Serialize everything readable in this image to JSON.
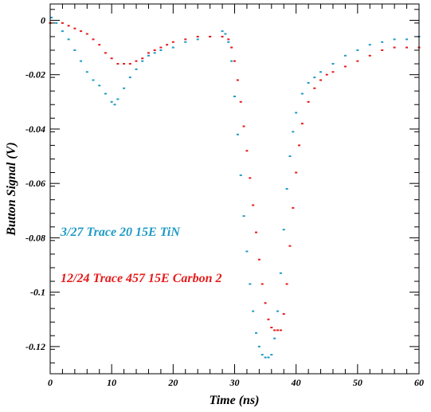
{
  "chart_data": {
    "type": "scatter",
    "xlabel": "Time (ns)",
    "ylabel": "Button Signal (V)",
    "xlim": [
      0,
      60
    ],
    "ylim": [
      -0.13,
      0.006
    ],
    "x_ticks": [
      {
        "v": 0,
        "label": "0"
      },
      {
        "v": 10,
        "label": "10"
      },
      {
        "v": 20,
        "label": "20"
      },
      {
        "v": 30,
        "label": "30"
      },
      {
        "v": 40,
        "label": "40"
      },
      {
        "v": 50,
        "label": "50"
      },
      {
        "v": 60,
        "label": "60"
      }
    ],
    "y_ticks": [
      {
        "v": 0,
        "label": "0"
      },
      {
        "v": -0.02,
        "label": "-0.02"
      },
      {
        "v": -0.04,
        "label": "-0.04"
      },
      {
        "v": -0.06,
        "label": "-0.06"
      },
      {
        "v": -0.08,
        "label": "-0.08"
      },
      {
        "v": -0.1,
        "label": "-0.1"
      },
      {
        "v": -0.12,
        "label": "-0.12"
      }
    ],
    "grid": false,
    "legend_position": "left",
    "series": [
      {
        "name": "3/27 Trace 20 15E TiN",
        "color": "#1e9bc4",
        "points": [
          [
            0.2,
            0.001
          ],
          [
            1,
            -0.001
          ],
          [
            2,
            -0.004
          ],
          [
            3,
            -0.007
          ],
          [
            4,
            -0.011
          ],
          [
            5,
            -0.015
          ],
          [
            6,
            -0.019
          ],
          [
            7,
            -0.022
          ],
          [
            8,
            -0.024
          ],
          [
            9,
            -0.027
          ],
          [
            10,
            -0.03
          ],
          [
            10.5,
            -0.031
          ],
          [
            11,
            -0.029
          ],
          [
            12,
            -0.025
          ],
          [
            13,
            -0.021
          ],
          [
            14,
            -0.018
          ],
          [
            15,
            -0.015
          ],
          [
            16,
            -0.013
          ],
          [
            17,
            -0.012
          ],
          [
            18,
            -0.011
          ],
          [
            20,
            -0.01
          ],
          [
            22,
            -0.008
          ],
          [
            24,
            -0.007
          ],
          [
            26,
            -0.006
          ],
          [
            28,
            -0.004
          ],
          [
            28.5,
            -0.005
          ],
          [
            29,
            -0.008
          ],
          [
            29.5,
            -0.015
          ],
          [
            30,
            -0.028
          ],
          [
            30.5,
            -0.042
          ],
          [
            31,
            -0.057
          ],
          [
            31.5,
            -0.072
          ],
          [
            32,
            -0.085
          ],
          [
            32.5,
            -0.097
          ],
          [
            33,
            -0.107
          ],
          [
            33.5,
            -0.115
          ],
          [
            34,
            -0.12
          ],
          [
            34.5,
            -0.123
          ],
          [
            35,
            -0.124
          ],
          [
            35.5,
            -0.124
          ],
          [
            36,
            -0.123
          ],
          [
            36.5,
            -0.117
          ],
          [
            37,
            -0.107
          ],
          [
            37.5,
            -0.093
          ],
          [
            38,
            -0.077
          ],
          [
            38.5,
            -0.062
          ],
          [
            39,
            -0.05
          ],
          [
            39.5,
            -0.041
          ],
          [
            40,
            -0.034
          ],
          [
            41,
            -0.027
          ],
          [
            42,
            -0.023
          ],
          [
            43,
            -0.021
          ],
          [
            44,
            -0.019
          ],
          [
            46,
            -0.016
          ],
          [
            48,
            -0.013
          ],
          [
            50,
            -0.011
          ],
          [
            52,
            -0.009
          ],
          [
            54,
            -0.008
          ],
          [
            56,
            -0.007
          ],
          [
            58,
            -0.007
          ],
          [
            60,
            -0.006
          ]
        ]
      },
      {
        "name": "12/24 Trace 457 15E Carbon 2",
        "color": "#e51b1b",
        "points": [
          [
            0,
            -0.001
          ],
          [
            2,
            -0.001
          ],
          [
            3,
            -0.002
          ],
          [
            4,
            -0.003
          ],
          [
            5,
            -0.004
          ],
          [
            6,
            -0.005
          ],
          [
            7,
            -0.007
          ],
          [
            8,
            -0.009
          ],
          [
            9,
            -0.012
          ],
          [
            10,
            -0.014
          ],
          [
            11,
            -0.016
          ],
          [
            12,
            -0.016
          ],
          [
            13,
            -0.016
          ],
          [
            14,
            -0.015
          ],
          [
            15,
            -0.014
          ],
          [
            16,
            -0.012
          ],
          [
            17,
            -0.011
          ],
          [
            18,
            -0.01
          ],
          [
            19,
            -0.009
          ],
          [
            20,
            -0.008
          ],
          [
            22,
            -0.007
          ],
          [
            24,
            -0.006
          ],
          [
            26,
            -0.006
          ],
          [
            28,
            -0.006
          ],
          [
            29,
            -0.007
          ],
          [
            29.5,
            -0.01
          ],
          [
            30,
            -0.015
          ],
          [
            30.5,
            -0.022
          ],
          [
            31,
            -0.03
          ],
          [
            31.5,
            -0.039
          ],
          [
            32,
            -0.048
          ],
          [
            32.5,
            -0.058
          ],
          [
            33,
            -0.068
          ],
          [
            33.5,
            -0.078
          ],
          [
            34,
            -0.088
          ],
          [
            34.5,
            -0.097
          ],
          [
            35,
            -0.104
          ],
          [
            35.5,
            -0.11
          ],
          [
            36,
            -0.113
          ],
          [
            36.5,
            -0.114
          ],
          [
            37,
            -0.114
          ],
          [
            37.5,
            -0.114
          ],
          [
            38,
            -0.108
          ],
          [
            38.5,
            -0.097
          ],
          [
            39,
            -0.083
          ],
          [
            39.5,
            -0.069
          ],
          [
            40,
            -0.056
          ],
          [
            40.5,
            -0.046
          ],
          [
            41,
            -0.038
          ],
          [
            42,
            -0.03
          ],
          [
            43,
            -0.025
          ],
          [
            44,
            -0.022
          ],
          [
            45,
            -0.02
          ],
          [
            46,
            -0.019
          ],
          [
            48,
            -0.017
          ],
          [
            50,
            -0.015
          ],
          [
            52,
            -0.013
          ],
          [
            54,
            -0.011
          ],
          [
            56,
            -0.01
          ],
          [
            58,
            -0.01
          ],
          [
            60,
            -0.01
          ]
        ]
      }
    ]
  }
}
